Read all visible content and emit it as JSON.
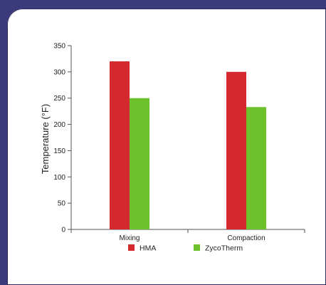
{
  "chart_data": {
    "type": "bar",
    "categories": [
      "Mixing",
      "Compaction"
    ],
    "series": [
      {
        "name": "HMA",
        "values": [
          320,
          300
        ],
        "color": "#d42a2f"
      },
      {
        "name": "ZycoTherm",
        "values": [
          250,
          233
        ],
        "color": "#6cc12c"
      }
    ],
    "ylabel": "Temperature (°F)",
    "xlabel": "",
    "ylim": [
      0,
      350
    ],
    "yticks": [
      0,
      50,
      100,
      150,
      200,
      250,
      300,
      350
    ],
    "grid": false,
    "legend_position": "bottom"
  },
  "colors": {
    "frame": "#3b3a7a",
    "panel": "#ffffff",
    "axis": "#555555"
  }
}
